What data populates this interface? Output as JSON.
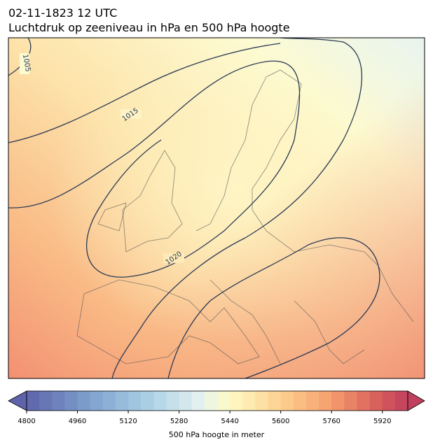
{
  "header": {
    "date": "02-11-1823 12 UTC",
    "title": "Luchtdruk op zeeniveau in hPa en 500 hPa hoogte"
  },
  "map": {
    "isobar_labels": [
      "1005",
      "1015",
      "1020"
    ]
  },
  "colorbar": {
    "label": "500 hPa hoogte in meter",
    "lim": [
      4800,
      6000
    ],
    "ticks": [
      4800,
      4960,
      5120,
      5280,
      5440,
      5600,
      5760,
      5920
    ]
  }
}
